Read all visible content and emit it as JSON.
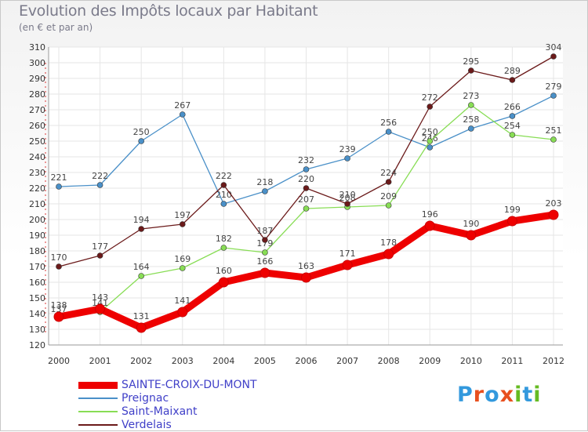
{
  "chart_data": {
    "type": "line",
    "title": "Evolution des Impôts locaux par Habitant",
    "subtitle": "(en € et par an)",
    "xlabel": "",
    "ylabel": "",
    "categories": [
      "2000",
      "2001",
      "2002",
      "2003",
      "2004",
      "2005",
      "2006",
      "2007",
      "2008",
      "2009",
      "2010",
      "2011",
      "2012"
    ],
    "ylim": [
      120,
      310
    ],
    "yticks": [
      120,
      130,
      140,
      150,
      160,
      170,
      180,
      190,
      200,
      210,
      220,
      230,
      240,
      250,
      260,
      270,
      280,
      290,
      300,
      310
    ],
    "grid": true,
    "legend_position": "bottom-left",
    "series": [
      {
        "name": "SAINTE-CROIX-DU-MONT",
        "color": "#ee0000",
        "values": [
          138,
          143,
          131,
          141,
          160,
          166,
          163,
          171,
          178,
          196,
          190,
          199,
          203
        ]
      },
      {
        "name": "Preignac",
        "color": "#4a90c8",
        "values": [
          221,
          222,
          250,
          267,
          210,
          218,
          232,
          239,
          256,
          246,
          258,
          266,
          279
        ]
      },
      {
        "name": "Saint-Maixant",
        "color": "#88dd55",
        "values": [
          137,
          141,
          164,
          169,
          182,
          179,
          207,
          208,
          209,
          250,
          273,
          254,
          251
        ]
      },
      {
        "name": "Verdelais",
        "color": "#6b1a1a",
        "values": [
          170,
          177,
          194,
          197,
          222,
          187,
          220,
          210,
          224,
          272,
          295,
          289,
          304
        ]
      }
    ]
  },
  "logo": {
    "text": "Proxiti",
    "letters": [
      "P",
      "r",
      "o",
      "x",
      "i",
      "t",
      "i"
    ],
    "colors": [
      "#3399dd",
      "#e8501e",
      "#3399dd",
      "#e8501e",
      "#66bb22",
      "#3399dd",
      "#66bb22"
    ]
  }
}
